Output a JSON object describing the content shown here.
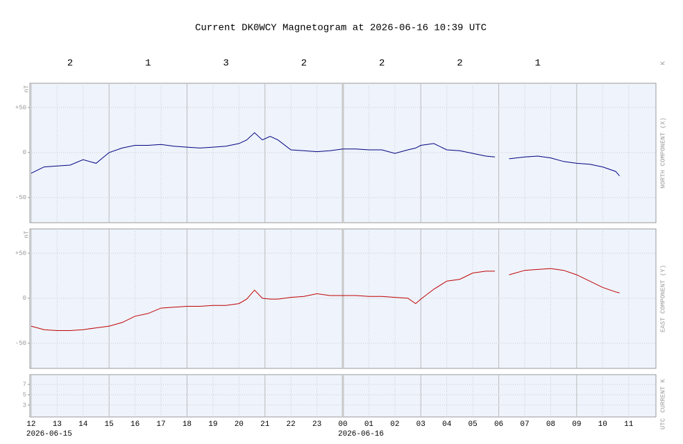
{
  "title": "Current DK0WCY Magnetogram at 2026-06-16 10:39 UTC",
  "k_row": {
    "label": "K",
    "values": [
      2,
      1,
      3,
      2,
      2,
      2,
      1
    ]
  },
  "x_axis": {
    "label": "UTC",
    "xlim": [
      -0.05,
      24.05
    ],
    "xticks": [
      {
        "value": 0,
        "label": "12"
      },
      {
        "value": 1,
        "label": "13"
      },
      {
        "value": 2,
        "label": "14"
      },
      {
        "value": 3,
        "label": "15"
      },
      {
        "value": 4,
        "label": "16"
      },
      {
        "value": 5,
        "label": "17"
      },
      {
        "value": 6,
        "label": "18"
      },
      {
        "value": 7,
        "label": "19"
      },
      {
        "value": 8,
        "label": "20"
      },
      {
        "value": 9,
        "label": "21"
      },
      {
        "value": 10,
        "label": "22"
      },
      {
        "value": 11,
        "label": "23"
      },
      {
        "value": 12,
        "label": "00"
      },
      {
        "value": 13,
        "label": "01"
      },
      {
        "value": 14,
        "label": "02"
      },
      {
        "value": 15,
        "label": "03"
      },
      {
        "value": 16,
        "label": "04"
      },
      {
        "value": 17,
        "label": "05"
      },
      {
        "value": 18,
        "label": "06"
      },
      {
        "value": 19,
        "label": "07"
      },
      {
        "value": 20,
        "label": "08"
      },
      {
        "value": 21,
        "label": "09"
      },
      {
        "value": 22,
        "label": "10"
      },
      {
        "value": 23,
        "label": "11"
      }
    ],
    "dates": [
      {
        "value": 0,
        "label": "2026-06-15"
      },
      {
        "value": 12,
        "label": "2026-06-16"
      }
    ]
  },
  "chart_data": [
    {
      "type": "line",
      "unit": "nT",
      "ylabel": "NORTH COMPONENT (X)",
      "ylim": [
        -78,
        77
      ],
      "yticks": [
        {
          "value": 50,
          "label": "+50"
        },
        0,
        {
          "value": -50,
          "label": "-50"
        }
      ],
      "grid": true,
      "x": [
        0,
        0.5,
        1,
        1.5,
        2,
        2.5,
        3,
        3.5,
        4,
        4.5,
        5,
        5.5,
        6,
        6.5,
        7,
        7.5,
        8,
        8.3,
        8.6,
        8.9,
        9.2,
        9.5,
        10,
        10.5,
        11,
        11.5,
        12,
        12.5,
        13,
        13.5,
        14,
        14.5,
        14.8,
        15,
        15.5,
        16,
        16.5,
        17,
        17.5,
        17.85,
        18.1,
        18.4,
        19,
        19.5,
        20,
        20.5,
        21,
        21.5,
        22,
        22.5,
        22.65
      ],
      "series": [
        {
          "color": "#00007f",
          "values": [
            -23,
            -16,
            -15,
            -14,
            -8,
            -12,
            0,
            5,
            8,
            8,
            9,
            7,
            6,
            5,
            6,
            7,
            10,
            14,
            22,
            14,
            18,
            14,
            3,
            2,
            1,
            2,
            4,
            4,
            3,
            3,
            -1,
            3,
            5,
            8,
            10,
            3,
            2,
            -1,
            -4,
            -5,
            null,
            -7,
            -5,
            -4,
            -6,
            -10,
            -12,
            -13,
            -16,
            -21,
            -26
          ]
        }
      ]
    },
    {
      "type": "line",
      "unit": "nT",
      "ylabel": "EAST COMPONENT (Y)",
      "ylim": [
        -78,
        77
      ],
      "yticks": [
        {
          "value": 50,
          "label": "+50"
        },
        0,
        {
          "value": -50,
          "label": "-50"
        }
      ],
      "grid": true,
      "x": [
        0,
        0.5,
        1,
        1.5,
        2,
        2.5,
        3,
        3.5,
        4,
        4.5,
        5,
        5.5,
        6,
        6.5,
        7,
        7.5,
        8,
        8.3,
        8.6,
        8.9,
        9.2,
        9.5,
        10,
        10.5,
        11,
        11.5,
        12,
        12.5,
        13,
        13.5,
        14,
        14.5,
        14.8,
        15,
        15.5,
        16,
        16.5,
        17,
        17.5,
        17.85,
        18.1,
        18.4,
        19,
        19.5,
        20,
        20.5,
        21,
        21.5,
        22,
        22.5,
        22.65
      ],
      "series": [
        {
          "color": "#c00000",
          "values": [
            -31,
            -35,
            -36,
            -36,
            -35,
            -33,
            -31,
            -27,
            -20,
            -17,
            -11,
            -10,
            -9,
            -9,
            -8,
            -8,
            -6,
            -1,
            9,
            0,
            -1,
            -1,
            1,
            2,
            5,
            3,
            3,
            3,
            2,
            2,
            1,
            0,
            -6,
            -1,
            10,
            19,
            21,
            28,
            30,
            30,
            null,
            26,
            31,
            32,
            33,
            31,
            26,
            19,
            12,
            7,
            6
          ]
        }
      ]
    },
    {
      "type": "line",
      "ylabel": "CURRENT K",
      "ylim": [
        0.7,
        8.9
      ],
      "yticks": [
        3,
        5,
        7
      ],
      "grid": true,
      "x": [],
      "series": []
    }
  ]
}
